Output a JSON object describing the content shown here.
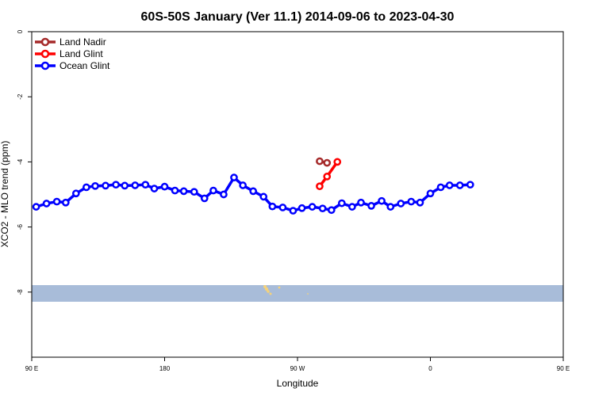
{
  "chart_data": {
    "type": "line",
    "title": "60S-50S January (Ver 11.1)   2014-09-06 to 2023-04-30",
    "xlabel": "Longitude",
    "ylabel": "XCO2 - MLO trend (ppm)",
    "xlim": [
      90,
      450
    ],
    "ylim": [
      -10,
      0
    ],
    "x_ticks": [
      {
        "value": 90,
        "label": "90 E"
      },
      {
        "value": 180,
        "label": "180"
      },
      {
        "value": 270,
        "label": "90 W"
      },
      {
        "value": 360,
        "label": "0"
      },
      {
        "value": 450,
        "label": "90 E"
      },
      {
        "value": 540,
        "label": "180"
      }
    ],
    "y_ticks": [
      {
        "value": 0,
        "label": "0"
      },
      {
        "value": -2,
        "label": "-2"
      },
      {
        "value": -4,
        "label": "-4"
      },
      {
        "value": -6,
        "label": "-6"
      },
      {
        "value": -8,
        "label": "-8"
      }
    ],
    "legend_position": "top-left",
    "series": [
      {
        "name": "Land Nadir",
        "color": "#a52a2a",
        "points": [
          [
            285,
            -3.98
          ],
          [
            290,
            -4.03
          ]
        ]
      },
      {
        "name": "Land Glint",
        "color": "#ff0000",
        "points": [
          [
            285,
            -4.75
          ],
          [
            290,
            -4.45
          ],
          [
            297,
            -4.0
          ]
        ]
      },
      {
        "name": "Ocean Glint",
        "color": "#0000ff",
        "points": [
          [
            93,
            -5.38
          ],
          [
            100,
            -5.28
          ],
          [
            107,
            -5.22
          ],
          [
            113,
            -5.25
          ],
          [
            120,
            -4.97
          ],
          [
            127,
            -4.78
          ],
          [
            133,
            -4.74
          ],
          [
            140,
            -4.73
          ],
          [
            147,
            -4.7
          ],
          [
            153,
            -4.73
          ],
          [
            160,
            -4.72
          ],
          [
            167,
            -4.7
          ],
          [
            173,
            -4.82
          ],
          [
            180,
            -4.76
          ],
          [
            187,
            -4.88
          ],
          [
            193,
            -4.9
          ],
          [
            200,
            -4.92
          ],
          [
            207,
            -5.12
          ],
          [
            213,
            -4.88
          ],
          [
            220,
            -5.0
          ],
          [
            227,
            -4.48
          ],
          [
            233,
            -4.72
          ],
          [
            240,
            -4.9
          ],
          [
            247,
            -5.07
          ],
          [
            253,
            -5.37
          ],
          [
            260,
            -5.4
          ],
          [
            267,
            -5.5
          ],
          [
            273,
            -5.42
          ],
          [
            280,
            -5.38
          ],
          [
            287,
            -5.43
          ],
          [
            293,
            -5.48
          ],
          [
            300,
            -5.27
          ],
          [
            307,
            -5.38
          ],
          [
            313,
            -5.25
          ],
          [
            320,
            -5.35
          ],
          [
            327,
            -5.2
          ],
          [
            333,
            -5.38
          ],
          [
            340,
            -5.28
          ],
          [
            347,
            -5.22
          ],
          [
            353,
            -5.25
          ],
          [
            360,
            -4.97
          ],
          [
            367,
            -4.78
          ],
          [
            373,
            -4.72
          ],
          [
            380,
            -4.72
          ],
          [
            387,
            -4.7
          ]
        ]
      }
    ]
  }
}
